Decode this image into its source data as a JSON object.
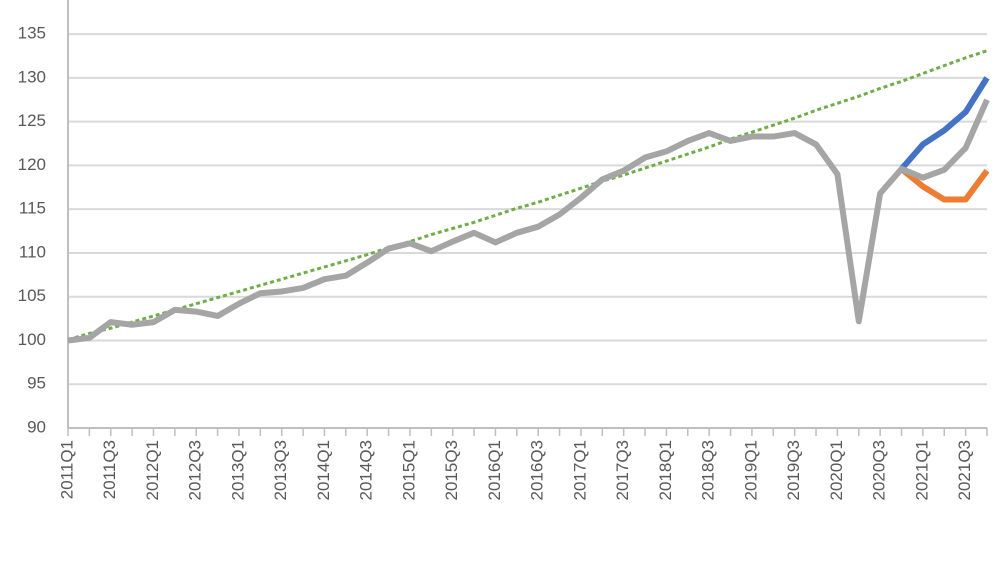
{
  "chart_data": {
    "type": "line",
    "categories": [
      "2011Q1",
      null,
      "2011Q3",
      null,
      "2012Q1",
      null,
      "2012Q3",
      null,
      "2013Q1",
      null,
      "2013Q3",
      null,
      "2014Q1",
      null,
      "2014Q3",
      null,
      "2015Q1",
      null,
      "2015Q3",
      null,
      "2016Q1",
      null,
      "2016Q3",
      null,
      "2017Q1",
      null,
      "2017Q3",
      null,
      "2018Q1",
      null,
      "2018Q3",
      null,
      "2019Q1",
      null,
      "2019Q3",
      null,
      "2020Q1",
      null,
      "2020Q3",
      null,
      "2021Q1",
      null,
      "2021Q3",
      null
    ],
    "series": [
      {
        "color": "#70ad47",
        "dashed": true,
        "values": [
          100.1,
          100.8,
          101.4,
          102.1,
          102.8,
          103.5,
          104.2,
          104.9,
          105.6,
          106.3,
          107.0,
          107.7,
          108.4,
          109.1,
          109.8,
          110.6,
          111.3,
          112.1,
          112.8,
          113.5,
          114.3,
          115.1,
          115.8,
          116.6,
          117.4,
          118.2,
          118.9,
          119.7,
          120.5,
          121.3,
          122.1,
          123.0,
          123.8,
          124.6,
          125.4,
          126.3,
          127.1,
          127.9,
          128.8,
          129.6,
          130.5,
          131.4,
          132.3,
          133.1
        ]
      },
      {
        "color": "#4472c4",
        "values": [
          null,
          null,
          null,
          null,
          null,
          null,
          null,
          null,
          null,
          null,
          null,
          null,
          null,
          null,
          null,
          null,
          null,
          null,
          null,
          null,
          null,
          null,
          null,
          null,
          null,
          null,
          null,
          null,
          null,
          null,
          null,
          null,
          null,
          null,
          null,
          null,
          null,
          null,
          null,
          119.6,
          122.4,
          124.0,
          126.1,
          130.0
        ]
      },
      {
        "color": "#ed7d31",
        "values": [
          null,
          null,
          null,
          null,
          null,
          null,
          null,
          null,
          null,
          null,
          null,
          null,
          null,
          null,
          null,
          null,
          null,
          null,
          null,
          null,
          null,
          null,
          null,
          null,
          null,
          null,
          null,
          null,
          null,
          null,
          null,
          null,
          null,
          null,
          null,
          null,
          null,
          null,
          null,
          119.6,
          117.6,
          116.1,
          116.1,
          119.4
        ]
      },
      {
        "color": "#a5a5a5",
        "values": [
          100.0,
          100.3,
          102.1,
          101.8,
          102.1,
          103.5,
          103.3,
          102.8,
          104.2,
          105.4,
          105.6,
          106.0,
          107.0,
          107.4,
          108.9,
          110.5,
          111.1,
          110.2,
          111.3,
          112.3,
          111.2,
          112.3,
          113.0,
          114.4,
          116.3,
          118.4,
          119.4,
          120.9,
          121.6,
          122.8,
          123.7,
          122.8,
          123.3,
          123.3,
          123.7,
          122.4,
          119.0,
          102.2,
          116.8,
          119.6,
          118.6,
          119.5,
          122.0,
          127.5
        ]
      }
    ],
    "ylim": [
      90,
      138.9
    ],
    "yticks": [
      90,
      95,
      100,
      105,
      110,
      115,
      120,
      125,
      130,
      135
    ],
    "grid": true
  }
}
